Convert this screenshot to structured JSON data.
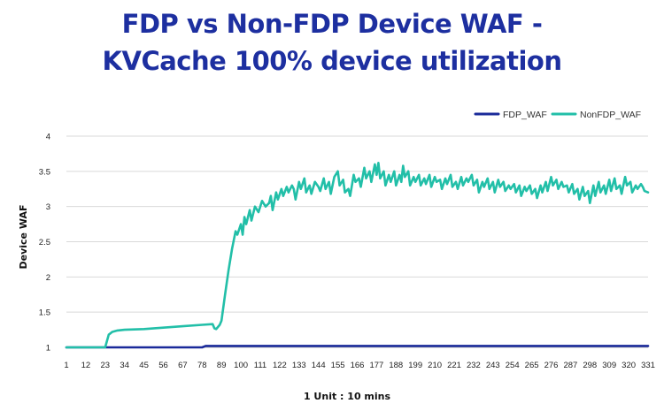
{
  "chart_data": {
    "type": "line",
    "title_lines": [
      "FDP vs Non-FDP Device WAF -",
      "KVCache 100% device utilization"
    ],
    "xlabel": "1 Unit : 10 mins",
    "ylabel": "Device WAF",
    "ylim": [
      1,
      4
    ],
    "yticks": [
      "1",
      "1.5",
      "2",
      "2.5",
      "3",
      "3.5",
      "4"
    ],
    "xticks": [
      "1",
      "12",
      "23",
      "34",
      "45",
      "56",
      "67",
      "78",
      "89",
      "100",
      "111",
      "122",
      "133",
      "144",
      "155",
      "166",
      "177",
      "188",
      "199",
      "210",
      "221",
      "232",
      "243",
      "254",
      "265",
      "276",
      "287",
      "298",
      "309",
      "320",
      "331"
    ],
    "xlim": [
      1,
      331
    ],
    "grid": true,
    "legend_position": "top-right",
    "series": [
      {
        "name": "FDP_WAF",
        "color": "#1a2a9a",
        "points": [
          [
            1,
            1.0
          ],
          [
            78,
            1.0
          ],
          [
            80,
            1.02
          ],
          [
            331,
            1.02
          ]
        ]
      },
      {
        "name": "NonFDP_WAF",
        "color": "#22bfa8",
        "points": [
          [
            1,
            1.0
          ],
          [
            23,
            1.0
          ],
          [
            25,
            1.18
          ],
          [
            27,
            1.22
          ],
          [
            30,
            1.24
          ],
          [
            34,
            1.25
          ],
          [
            45,
            1.26
          ],
          [
            56,
            1.28
          ],
          [
            67,
            1.3
          ],
          [
            78,
            1.32
          ],
          [
            84,
            1.33
          ],
          [
            85,
            1.27
          ],
          [
            86,
            1.26
          ],
          [
            88,
            1.32
          ],
          [
            89,
            1.38
          ],
          [
            91,
            1.75
          ],
          [
            93,
            2.1
          ],
          [
            95,
            2.4
          ],
          [
            97,
            2.65
          ],
          [
            98,
            2.6
          ],
          [
            100,
            2.75
          ],
          [
            101,
            2.6
          ],
          [
            102,
            2.85
          ],
          [
            103,
            2.75
          ],
          [
            105,
            2.95
          ],
          [
            106,
            2.8
          ],
          [
            108,
            3.0
          ],
          [
            110,
            2.92
          ],
          [
            112,
            3.08
          ],
          [
            114,
            3.0
          ],
          [
            116,
            3.05
          ],
          [
            117,
            3.15
          ],
          [
            118,
            2.95
          ],
          [
            120,
            3.2
          ],
          [
            121,
            3.1
          ],
          [
            123,
            3.25
          ],
          [
            124,
            3.15
          ],
          [
            126,
            3.28
          ],
          [
            127,
            3.2
          ],
          [
            129,
            3.3
          ],
          [
            130,
            3.25
          ],
          [
            131,
            3.1
          ],
          [
            133,
            3.35
          ],
          [
            134,
            3.25
          ],
          [
            136,
            3.4
          ],
          [
            137,
            3.2
          ],
          [
            139,
            3.3
          ],
          [
            140,
            3.18
          ],
          [
            142,
            3.35
          ],
          [
            144,
            3.28
          ],
          [
            145,
            3.22
          ],
          [
            147,
            3.4
          ],
          [
            148,
            3.25
          ],
          [
            150,
            3.35
          ],
          [
            151,
            3.18
          ],
          [
            153,
            3.42
          ],
          [
            155,
            3.5
          ],
          [
            156,
            3.3
          ],
          [
            158,
            3.38
          ],
          [
            159,
            3.2
          ],
          [
            161,
            3.25
          ],
          [
            162,
            3.15
          ],
          [
            164,
            3.45
          ],
          [
            165,
            3.35
          ],
          [
            167,
            3.4
          ],
          [
            168,
            3.28
          ],
          [
            170,
            3.55
          ],
          [
            171,
            3.4
          ],
          [
            173,
            3.5
          ],
          [
            174,
            3.35
          ],
          [
            176,
            3.6
          ],
          [
            177,
            3.45
          ],
          [
            178,
            3.62
          ],
          [
            179,
            3.4
          ],
          [
            181,
            3.5
          ],
          [
            182,
            3.3
          ],
          [
            184,
            3.45
          ],
          [
            185,
            3.35
          ],
          [
            187,
            3.5
          ],
          [
            188,
            3.3
          ],
          [
            190,
            3.45
          ],
          [
            191,
            3.35
          ],
          [
            192,
            3.58
          ],
          [
            193,
            3.42
          ],
          [
            195,
            3.5
          ],
          [
            196,
            3.3
          ],
          [
            198,
            3.42
          ],
          [
            199,
            3.35
          ],
          [
            201,
            3.45
          ],
          [
            202,
            3.3
          ],
          [
            204,
            3.4
          ],
          [
            205,
            3.32
          ],
          [
            207,
            3.45
          ],
          [
            208,
            3.28
          ],
          [
            210,
            3.42
          ],
          [
            211,
            3.35
          ],
          [
            213,
            3.38
          ],
          [
            214,
            3.25
          ],
          [
            216,
            3.4
          ],
          [
            217,
            3.32
          ],
          [
            219,
            3.45
          ],
          [
            220,
            3.28
          ],
          [
            222,
            3.35
          ],
          [
            223,
            3.25
          ],
          [
            225,
            3.42
          ],
          [
            226,
            3.3
          ],
          [
            228,
            3.4
          ],
          [
            229,
            3.35
          ],
          [
            231,
            3.45
          ],
          [
            232,
            3.3
          ],
          [
            234,
            3.38
          ],
          [
            235,
            3.2
          ],
          [
            237,
            3.35
          ],
          [
            238,
            3.28
          ],
          [
            240,
            3.4
          ],
          [
            241,
            3.25
          ],
          [
            243,
            3.35
          ],
          [
            244,
            3.2
          ],
          [
            246,
            3.38
          ],
          [
            247,
            3.28
          ],
          [
            249,
            3.35
          ],
          [
            250,
            3.22
          ],
          [
            252,
            3.3
          ],
          [
            253,
            3.25
          ],
          [
            255,
            3.32
          ],
          [
            256,
            3.2
          ],
          [
            258,
            3.3
          ],
          [
            259,
            3.15
          ],
          [
            261,
            3.28
          ],
          [
            262,
            3.22
          ],
          [
            264,
            3.3
          ],
          [
            265,
            3.18
          ],
          [
            267,
            3.25
          ],
          [
            268,
            3.12
          ],
          [
            270,
            3.3
          ],
          [
            271,
            3.2
          ],
          [
            273,
            3.35
          ],
          [
            274,
            3.22
          ],
          [
            276,
            3.42
          ],
          [
            277,
            3.3
          ],
          [
            279,
            3.38
          ],
          [
            280,
            3.25
          ],
          [
            282,
            3.35
          ],
          [
            283,
            3.28
          ],
          [
            285,
            3.3
          ],
          [
            286,
            3.2
          ],
          [
            288,
            3.32
          ],
          [
            289,
            3.18
          ],
          [
            291,
            3.25
          ],
          [
            292,
            3.1
          ],
          [
            294,
            3.28
          ],
          [
            295,
            3.15
          ],
          [
            297,
            3.22
          ],
          [
            298,
            3.05
          ],
          [
            300,
            3.3
          ],
          [
            301,
            3.15
          ],
          [
            303,
            3.35
          ],
          [
            304,
            3.2
          ],
          [
            306,
            3.3
          ],
          [
            307,
            3.18
          ],
          [
            309,
            3.38
          ],
          [
            310,
            3.22
          ],
          [
            312,
            3.4
          ],
          [
            313,
            3.25
          ],
          [
            315,
            3.3
          ],
          [
            316,
            3.18
          ],
          [
            318,
            3.42
          ],
          [
            319,
            3.3
          ],
          [
            321,
            3.35
          ],
          [
            322,
            3.2
          ],
          [
            324,
            3.3
          ],
          [
            325,
            3.25
          ],
          [
            327,
            3.32
          ],
          [
            328,
            3.28
          ],
          [
            329,
            3.22
          ],
          [
            331,
            3.2
          ]
        ]
      }
    ]
  }
}
